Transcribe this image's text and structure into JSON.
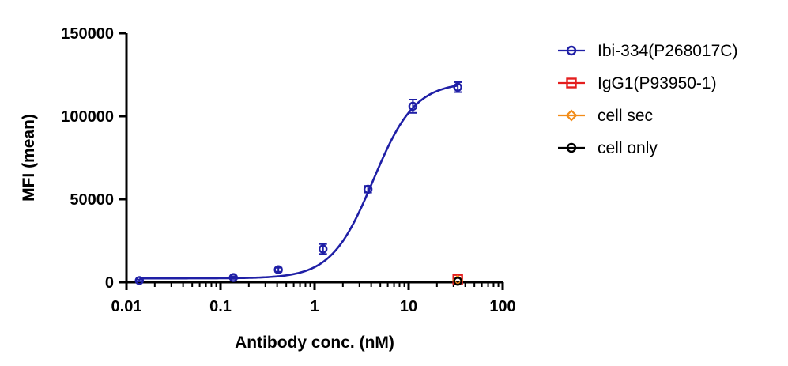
{
  "chart_data": {
    "type": "scatter",
    "title": "",
    "xlabel": "Antibody conc. (nM)",
    "ylabel": "MFI (mean)",
    "xscale": "log",
    "xlim": [
      0.01,
      100
    ],
    "ylim": [
      0,
      150000
    ],
    "x_ticks": [
      {
        "value": 0.01,
        "label": "0.01"
      },
      {
        "value": 0.1,
        "label": "0.1"
      },
      {
        "value": 1,
        "label": "1"
      },
      {
        "value": 10,
        "label": "10"
      },
      {
        "value": 100,
        "label": "100"
      }
    ],
    "y_ticks": [
      {
        "value": 0,
        "label": "0"
      },
      {
        "value": 50000,
        "label": "50000"
      },
      {
        "value": 100000,
        "label": "100000"
      },
      {
        "value": 150000,
        "label": "150000"
      }
    ],
    "grid": false,
    "legend_position": "right",
    "series": [
      {
        "name": "Ibi-334(P268017C)",
        "color": "#1f1fa6",
        "marker": "circle",
        "fit": "sigmoidal",
        "x": [
          0.0137,
          0.137,
          0.412,
          1.23,
          3.7,
          11.1,
          33.3
        ],
        "y": [
          1000,
          2800,
          7500,
          20000,
          56000,
          106000,
          117500
        ],
        "error": [
          600,
          800,
          1200,
          3000,
          2000,
          4000,
          3000
        ]
      },
      {
        "name": "IgG1(P93950-1)",
        "color": "#e41e1e",
        "marker": "square",
        "x": [
          33.3
        ],
        "y": [
          1800
        ],
        "error": [
          0
        ]
      },
      {
        "name": "cell sec",
        "color": "#f28c18",
        "marker": "diamond",
        "x": [
          33.3
        ],
        "y": [
          1200
        ],
        "error": [
          0
        ]
      },
      {
        "name": "cell only",
        "color": "#000000",
        "marker": "circle",
        "x": [
          33.3
        ],
        "y": [
          600
        ],
        "error": [
          0
        ]
      }
    ],
    "fit_curve": {
      "series": "Ibi-334(P268017C)",
      "bottom": 2300,
      "top": 120500,
      "ec50": 4.2,
      "hill": 1.95
    }
  }
}
